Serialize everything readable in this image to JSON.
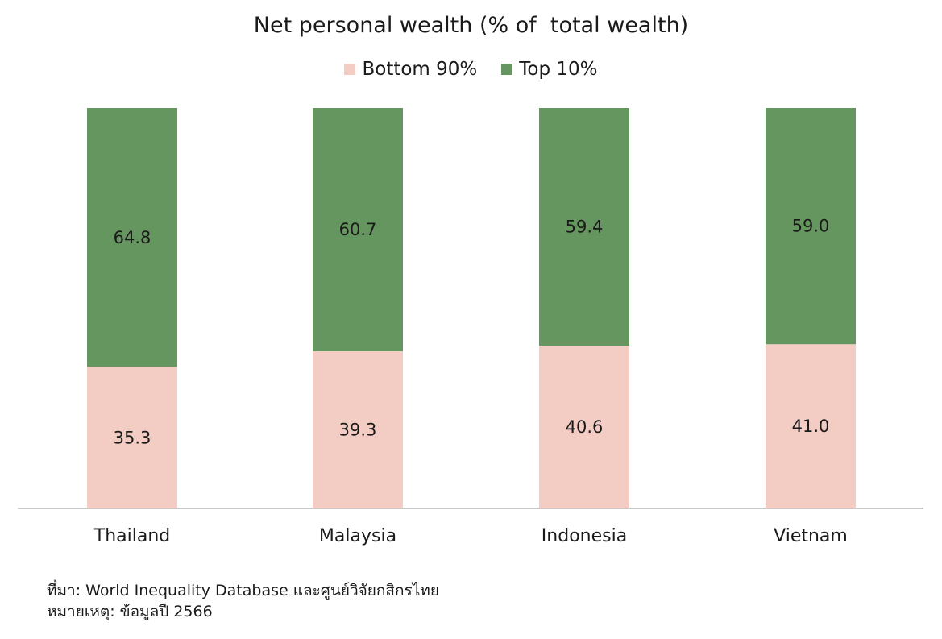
{
  "chart_data": {
    "type": "bar",
    "stacked": true,
    "title": "Net personal wealth (% of  total wealth)",
    "categories": [
      "Thailand",
      "Malaysia",
      "Indonesia",
      "Vietnam"
    ],
    "series": [
      {
        "name": "Bottom 90%",
        "color": "#f3ccc4",
        "values": [
          35.3,
          39.3,
          40.6,
          41.0
        ],
        "labels": [
          "35.3",
          "39.3",
          "40.6",
          "41.0"
        ]
      },
      {
        "name": "Top 10%",
        "color": "#66965f",
        "values": [
          64.8,
          60.7,
          59.4,
          59.0
        ],
        "labels": [
          "64.8",
          "60.7",
          "59.4",
          "59.0"
        ]
      }
    ],
    "legend_position": "top",
    "grid": false,
    "ylim": [
      0,
      100
    ]
  },
  "footnotes": {
    "source": "ที่มา: World Inequality Database และศูนย์วิจัยกสิกรไทย",
    "note": "หมายเหตุ: ข้อมูลปี 2566"
  }
}
